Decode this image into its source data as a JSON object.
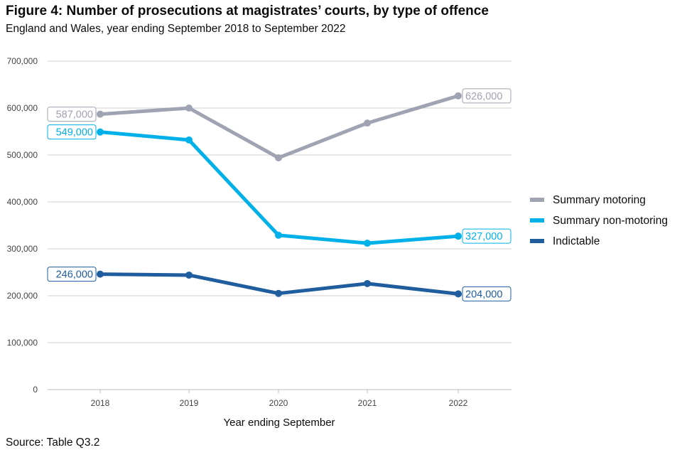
{
  "title": "Figure 4: Number of prosecutions at magistrates’ courts, by type of offence",
  "subtitle": "England and Wales, year ending September 2018 to September 2022",
  "source": "Source: Table Q3.2",
  "chart_data": {
    "type": "line",
    "categories": [
      "2018",
      "2019",
      "2020",
      "2021",
      "2022"
    ],
    "xlabel": "Year ending September",
    "ylabel": "",
    "ylim": [
      0,
      700000
    ],
    "yticks": [
      0,
      100000,
      200000,
      300000,
      400000,
      500000,
      600000,
      700000
    ],
    "ytick_labels": [
      "0",
      "100,000",
      "200,000",
      "300,000",
      "400,000",
      "500,000",
      "600,000",
      "700,000"
    ],
    "grid": "horizontal",
    "legend": "right",
    "series": [
      {
        "name": "Summary motoring",
        "color": "#A0A3B1",
        "values": [
          587000,
          600000,
          494000,
          568000,
          626000
        ],
        "labels": {
          "first": "587,000",
          "last": "626,000"
        }
      },
      {
        "name": "Summary non-motoring",
        "color": "#00B0E8",
        "values": [
          549000,
          532000,
          329000,
          312000,
          327000
        ],
        "labels": {
          "first": "549,000",
          "last": "327,000"
        }
      },
      {
        "name": "Indictable",
        "color": "#1F5D9E",
        "values": [
          246000,
          244000,
          205000,
          226000,
          204000
        ],
        "labels": {
          "first": "246,000",
          "last": "204,000"
        }
      }
    ]
  }
}
